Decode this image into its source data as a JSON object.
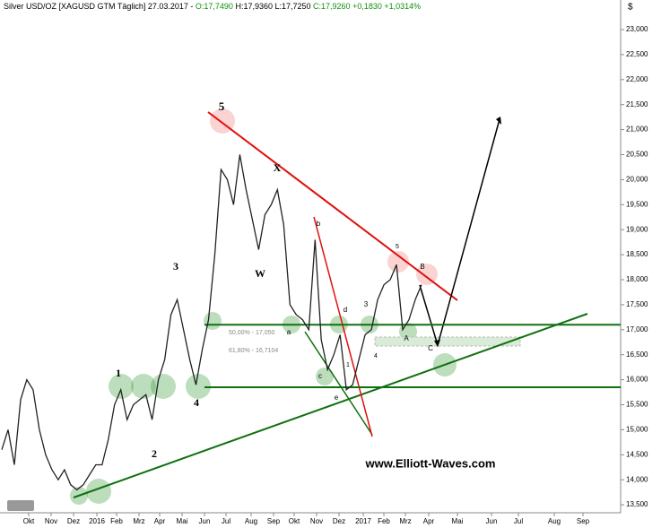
{
  "chart_data": {
    "type": "line",
    "header_parts": [
      {
        "text": "Silver USD/OZ [XAGUSD GTM  Täglich] 27.03.2017 - ",
        "color": "#000000"
      },
      {
        "text": "O:17,7490",
        "color": "#109010"
      },
      {
        "text": " H:17,9360 L:17,7250 ",
        "color": "#000000"
      },
      {
        "text": "C:17,9260 +0,1830 +1,0314%",
        "color": "#109010"
      }
    ],
    "y_unit": "$",
    "series": [
      {
        "name": "Silver USD/OZ",
        "color": "#222222",
        "values": [
          14.6,
          15.0,
          14.3,
          15.6,
          16.0,
          15.8,
          15.0,
          14.5,
          14.2,
          14.0,
          14.2,
          13.9,
          13.8,
          13.9,
          14.1,
          14.3,
          14.3,
          14.8,
          15.5,
          15.8,
          15.2,
          15.5,
          15.6,
          15.7,
          15.2,
          16.0,
          16.4,
          17.3,
          17.6,
          17.0,
          16.4,
          15.9,
          16.6,
          17.2,
          18.5,
          20.2,
          20.0,
          19.5,
          20.5,
          19.8,
          19.2,
          18.6,
          19.3,
          19.5,
          19.8,
          19.1,
          17.5,
          17.3,
          17.2,
          17.0,
          18.8,
          16.8,
          16.2,
          16.5,
          16.9,
          15.8,
          15.9,
          16.4,
          16.9,
          17.0,
          17.6,
          17.9,
          18.0,
          18.3,
          17.0,
          17.2,
          17.6,
          17.9
        ]
      }
    ],
    "ylim": [
      13.3,
      23.5
    ],
    "yticks": [
      {
        "value": 13.5,
        "label": "13,500"
      },
      {
        "value": 14,
        "label": "14,000"
      },
      {
        "value": 14.5,
        "label": "14,500"
      },
      {
        "value": 15,
        "label": "15,000"
      },
      {
        "value": 15.5,
        "label": "15,500"
      },
      {
        "value": 16,
        "label": "16,000"
      },
      {
        "value": 16.5,
        "label": "16,500"
      },
      {
        "value": 17,
        "label": "17,000"
      },
      {
        "value": 17.5,
        "label": "17,500"
      },
      {
        "value": 18,
        "label": "18,000"
      },
      {
        "value": 18.5,
        "label": "18,500"
      },
      {
        "value": 19,
        "label": "19,000"
      },
      {
        "value": 19.5,
        "label": "19,500"
      },
      {
        "value": 20,
        "label": "20,000"
      },
      {
        "value": 20.5,
        "label": "20,500"
      },
      {
        "value": 21,
        "label": "21,000"
      },
      {
        "value": 21.5,
        "label": "21,500"
      },
      {
        "value": 22,
        "label": "22,000"
      },
      {
        "value": 22.5,
        "label": "22,500"
      },
      {
        "value": 23,
        "label": "23,000"
      }
    ],
    "x_labels": [
      "Okt",
      "Nov",
      "Dez",
      "2016",
      "Feb",
      "Mrz",
      "Apr",
      "Mai",
      "Jun",
      "Jul",
      "Aug",
      "Sep",
      "Okt",
      "Nov",
      "Dez",
      "2017",
      "Feb",
      "Mrz",
      "Apr",
      "Mai",
      "Jun",
      "Jul",
      "Aug",
      "Sep"
    ],
    "levels": [
      {
        "value": 17.1,
        "color": "#107010"
      },
      {
        "value": 15.85,
        "color": "#107010"
      }
    ],
    "fib_labels": [
      "50,00% - 17,050",
      "61,80% - 16,7104"
    ],
    "wave_labels": [
      "5",
      "X",
      "W",
      "3",
      "1",
      "2",
      "4",
      "b",
      "d",
      "c",
      "e",
      "a",
      "1",
      "3",
      "4",
      "5",
      "A",
      "B",
      "C"
    ],
    "watermark": "www.Elliott-Waves.com"
  }
}
